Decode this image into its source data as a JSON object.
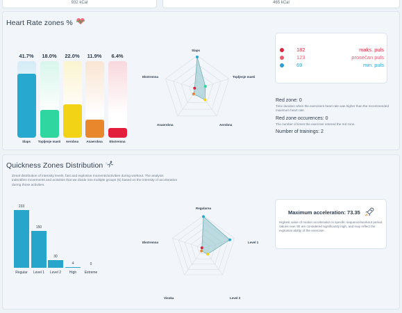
{
  "top_cards": {
    "left_value": "932 kCal",
    "right_value": "465 kCal"
  },
  "hr_section": {
    "title": "Heart Rate zones %",
    "title_icon": "heart-pulse-icon",
    "zones": [
      {
        "pct": "41.7%",
        "label": "Slaps",
        "value": 41.7,
        "color": "#27a9cf",
        "tint": "#d3ecf6"
      },
      {
        "pct": "18.0%",
        "label": "Topljenje masti",
        "value": 18.0,
        "color": "#2fd6a0",
        "tint": "#d8f6ec"
      },
      {
        "pct": "22.0%",
        "label": "Aerobna",
        "value": 22.0,
        "color": "#f2d316",
        "tint": "#fbf4cf"
      },
      {
        "pct": "11.9%",
        "label": "Anaerobna",
        "value": 11.9,
        "color": "#e8872c",
        "tint": "#f9e5d2"
      },
      {
        "pct": "6.4%",
        "label": "Ekstremna",
        "value": 6.4,
        "color": "#e31d3c",
        "tint": "#f8d8dd"
      }
    ],
    "radar_labels": [
      "Slaps",
      "Topljenje masti",
      "Aerobna",
      "Anaerobna",
      "Ekstremna"
    ],
    "legend": [
      {
        "value": "182",
        "name": "maks. puls",
        "color": "#d7263d"
      },
      {
        "value": "123",
        "name": "prosečan puls",
        "color": "#e85a6e"
      },
      {
        "value": "69",
        "name": "min. puls",
        "color": "#2a9fcf"
      }
    ],
    "red_zone_title": "Red zone: 0",
    "red_zone_text": "Time duration when the exercisers heart rate was higher than the recommended maximum heart rate.",
    "occ_title": "Red zone occurences: 0",
    "occ_text": "The number of times the exerciser entered the red zone.",
    "trainings": "Number of trainings: 2"
  },
  "quickness": {
    "title": "Quickness Zones Distribution",
    "title_icon": "running-icon",
    "description": "Zonal distribution of intensity levels, fast and explosive moments/activities during workout. The analysis indentifies movements and activities that we divide into multiple groups (5) based on the intensity of acceleration during those activities.",
    "chart_data": {
      "type": "bar",
      "categories": [
        "Regular",
        "Level 1",
        "Level 2",
        "High",
        "Extreme"
      ],
      "values": [
        233,
        150,
        30,
        4,
        0
      ],
      "value_labels": [
        "233",
        "150",
        "30",
        "4",
        "0"
      ],
      "ylim": [
        0,
        233
      ]
    },
    "radar_labels": [
      "Regularna",
      "Level 1",
      "Level 2",
      "Visoka",
      "Ekstremna"
    ],
    "max_acc_title": "Maximum acceleration: 73.35",
    "max_acc_icon": "rocket-icon",
    "max_acc_text": "Highest value of motion acceleration in specific sequence/workout period. Values over 90 are considered significantly high, and may reflect the explosive ability of the exerciser."
  }
}
